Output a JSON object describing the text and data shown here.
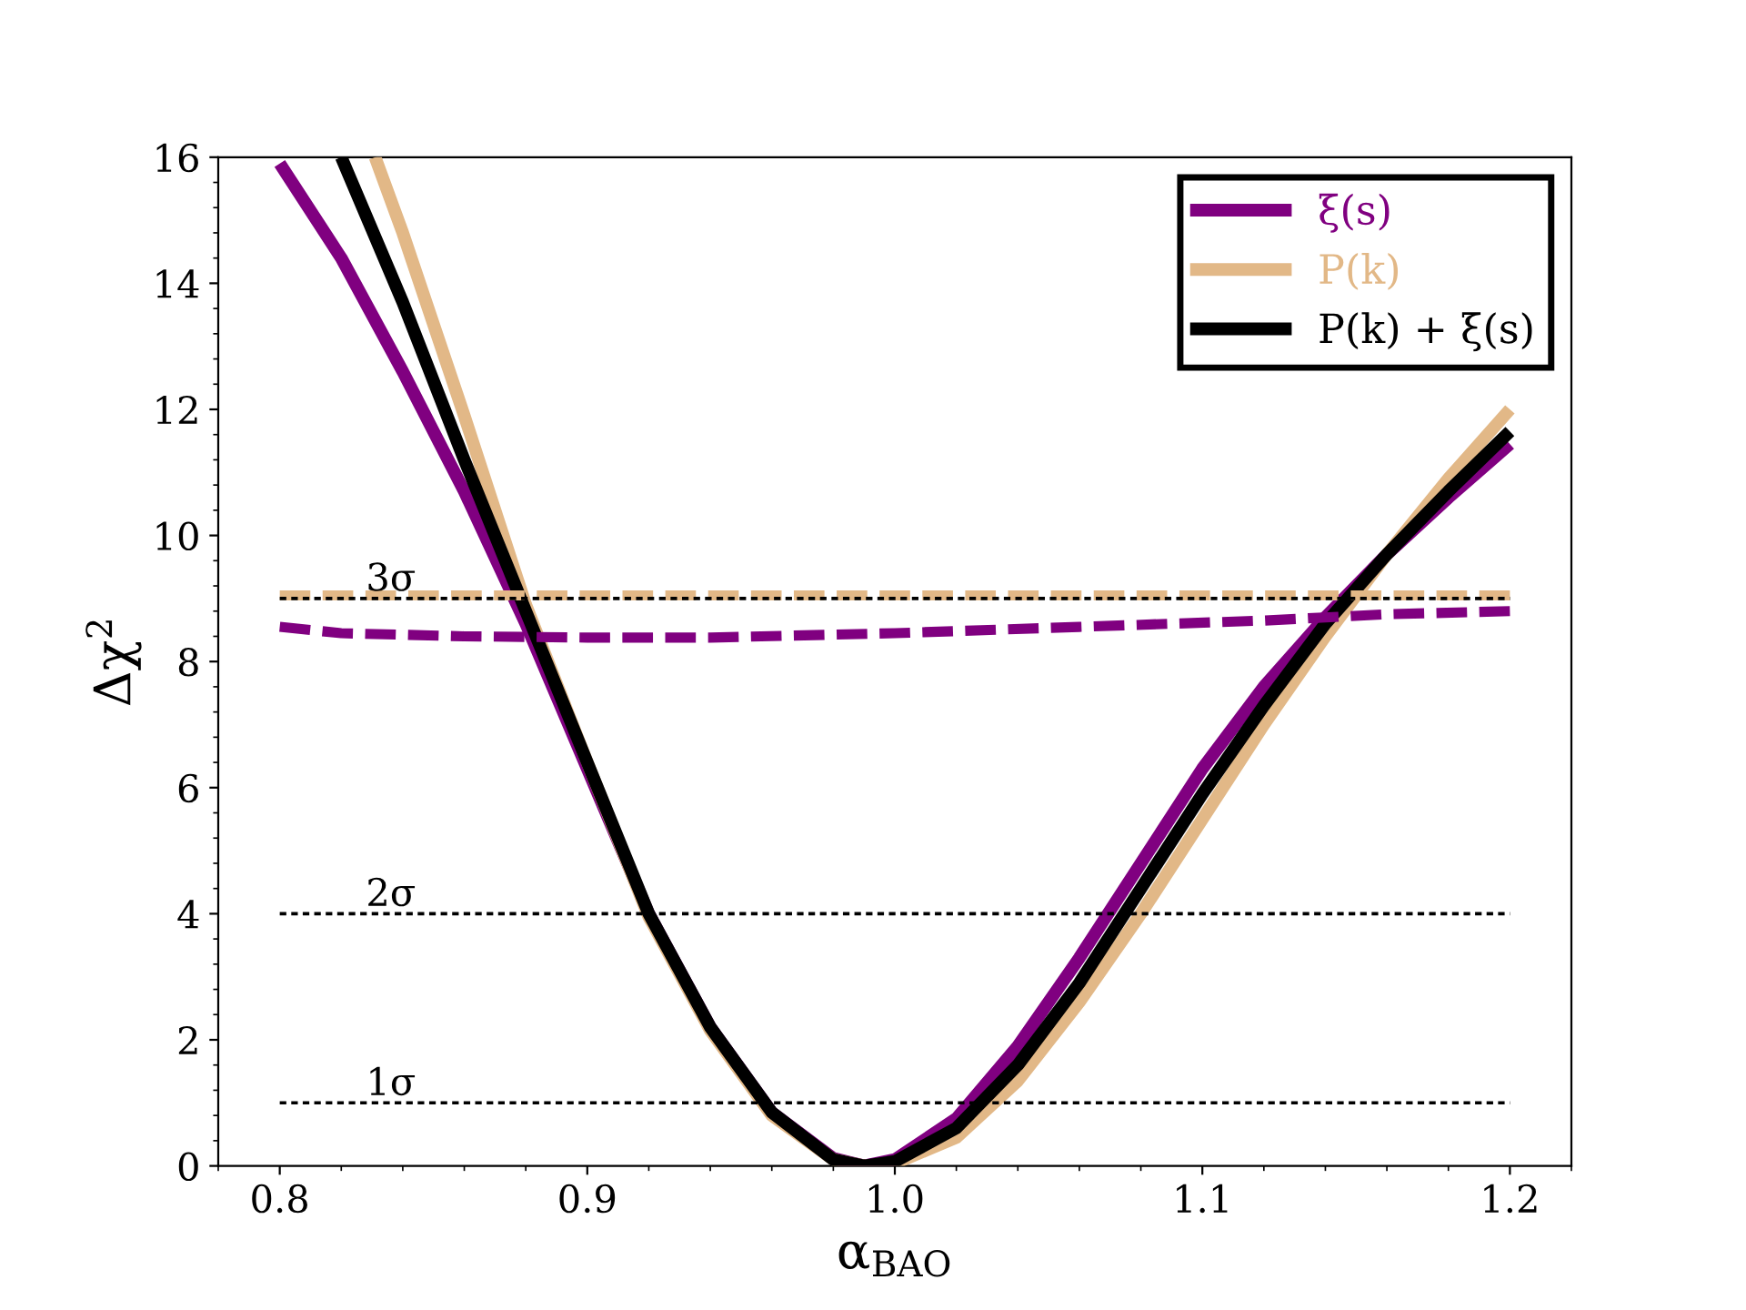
{
  "chart_data": {
    "type": "line",
    "xlabel": "α$_{BAO}$",
    "ylabel": "Δχ$^{2}$",
    "xlim": [
      0.78,
      1.22
    ],
    "ylim": [
      0,
      16
    ],
    "xticks": [
      {
        "value": 0.8,
        "label": "0.8"
      },
      {
        "value": 0.9,
        "label": "0.9"
      },
      {
        "value": 1.0,
        "label": "1.0"
      },
      {
        "value": 1.1,
        "label": "1.1"
      },
      {
        "value": 1.2,
        "label": "1.2"
      }
    ],
    "yticks": [
      0,
      2,
      4,
      6,
      8,
      10,
      12,
      14,
      16
    ],
    "grid": false,
    "legend": "top right",
    "line_style": "solid",
    "series": [
      {
        "name": "ξ(s)",
        "color": "#800080",
        "x": [
          0.8,
          0.82,
          0.84,
          0.86,
          0.88,
          0.9,
          0.92,
          0.94,
          0.96,
          0.98,
          0.99,
          1.0,
          1.02,
          1.04,
          1.06,
          1.08,
          1.1,
          1.12,
          1.14,
          1.16,
          1.18,
          1.2
        ],
        "values": [
          15.9,
          14.4,
          12.6,
          10.7,
          8.6,
          6.3,
          4.0,
          2.2,
          0.85,
          0.12,
          0.0,
          0.1,
          0.75,
          1.9,
          3.3,
          4.8,
          6.3,
          7.6,
          8.7,
          9.7,
          10.6,
          11.45
        ]
      },
      {
        "name": "P(k)",
        "color": "#e2b887",
        "x": [
          0.831,
          0.84,
          0.86,
          0.88,
          0.9,
          0.92,
          0.94,
          0.96,
          0.98,
          0.99,
          1.0,
          1.02,
          1.04,
          1.06,
          1.08,
          1.1,
          1.12,
          1.14,
          1.16,
          1.18,
          1.2
        ],
        "values": [
          16.0,
          14.8,
          11.9,
          8.9,
          6.4,
          3.95,
          2.15,
          0.8,
          0.1,
          0.0,
          0.04,
          0.45,
          1.35,
          2.6,
          4.0,
          5.5,
          7.0,
          8.4,
          9.7,
          10.9,
          12.0
        ]
      },
      {
        "name": "P(k) + ξ(s)",
        "color": "#000000",
        "x": [
          0.82,
          0.84,
          0.86,
          0.88,
          0.9,
          0.92,
          0.94,
          0.96,
          0.98,
          0.99,
          1.0,
          1.02,
          1.04,
          1.06,
          1.08,
          1.1,
          1.12,
          1.14,
          1.16,
          1.18,
          1.2
        ],
        "values": [
          16.0,
          13.7,
          11.2,
          8.8,
          6.4,
          4.0,
          2.2,
          0.85,
          0.1,
          0.0,
          0.07,
          0.6,
          1.6,
          2.9,
          4.4,
          5.9,
          7.3,
          8.6,
          9.7,
          10.7,
          11.65
        ]
      },
      {
        "color": "#800080",
        "line_style": "dashed",
        "x": [
          0.8,
          0.82,
          0.86,
          0.9,
          0.94,
          1.0,
          1.06,
          1.12,
          1.16,
          1.2
        ],
        "values": [
          8.55,
          8.45,
          8.4,
          8.38,
          8.38,
          8.45,
          8.55,
          8.65,
          8.75,
          8.8
        ]
      },
      {
        "color": "#e2b887",
        "line_style": "dashed",
        "x": [
          0.8,
          1.2
        ],
        "values": [
          9.05,
          9.05
        ]
      }
    ],
    "ref_lines": [
      {
        "axis": "y",
        "value": 1,
        "label": "1σ",
        "color": "#000000",
        "line_style": "dotted"
      },
      {
        "axis": "y",
        "value": 4,
        "label": "2σ",
        "color": "#000000",
        "line_style": "dotted"
      },
      {
        "axis": "y",
        "value": 9,
        "label": "3σ",
        "color": "#000000",
        "line_style": "dotted"
      }
    ]
  }
}
